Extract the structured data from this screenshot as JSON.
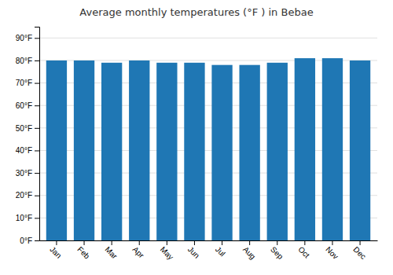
{
  "chart_data": {
    "type": "bar",
    "title": "Average monthly temperatures (°F ) in Bebae",
    "categories": [
      "Jan",
      "Feb",
      "Mar",
      "Apr",
      "May",
      "Jun",
      "Jul",
      "Aug",
      "Sep",
      "Oct",
      "Nov",
      "Dec"
    ],
    "values": [
      80,
      80,
      79,
      80,
      79,
      79,
      78,
      78,
      79,
      81,
      81,
      80
    ],
    "ylim": [
      0,
      95
    ],
    "yticks": [
      {
        "value": 0,
        "label": "0°F"
      },
      {
        "value": 10,
        "label": "10°F"
      },
      {
        "value": 20,
        "label": "20°F"
      },
      {
        "value": 30,
        "label": "30°F"
      },
      {
        "value": 40,
        "label": "40°F"
      },
      {
        "value": 50,
        "label": "50°F"
      },
      {
        "value": 60,
        "label": "60°F"
      },
      {
        "value": 70,
        "label": "70°F"
      },
      {
        "value": 80,
        "label": "80°F"
      },
      {
        "value": 90,
        "label": "90°F"
      }
    ],
    "grid": true
  }
}
